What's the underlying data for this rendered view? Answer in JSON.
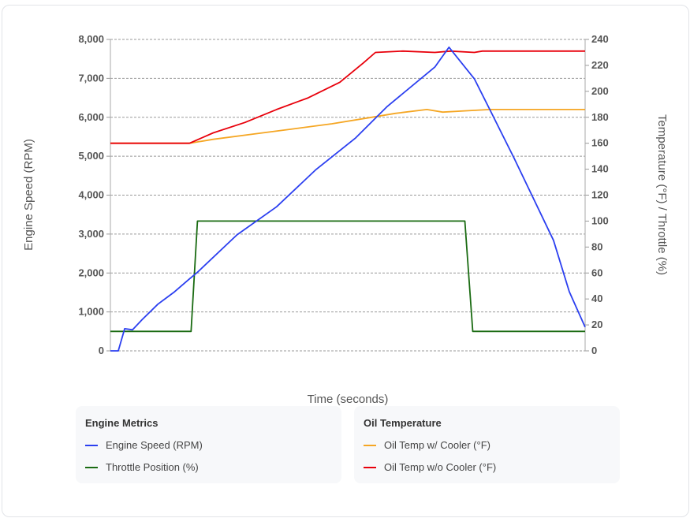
{
  "chart_data": {
    "type": "line",
    "xlabel": "Time (seconds)",
    "ylabel_left": "Engine Speed (RPM)",
    "ylabel_right": "Temperature (°F) / Throttle (%)",
    "ylim_left": [
      0,
      8000
    ],
    "ylim_right": [
      0,
      240
    ],
    "xlim": [
      0,
      60
    ],
    "yticks_left": [
      "0",
      "1,000",
      "2,000",
      "3,000",
      "4,000",
      "5,000",
      "6,000",
      "7,000",
      "8,000"
    ],
    "yticks_right": [
      "0",
      "20",
      "40",
      "60",
      "80",
      "100",
      "120",
      "140",
      "160",
      "180",
      "200",
      "220",
      "240"
    ],
    "grid": true,
    "series": [
      {
        "name": "Engine Speed (RPM)",
        "axis": "left",
        "color": "#2b3ff0",
        "x": [
          0,
          1,
          1.8,
          2.8,
          4,
          6,
          8,
          10,
          11,
          16,
          21,
          26,
          31,
          35,
          41,
          42.8,
          46,
          48,
          51,
          56,
          58,
          60
        ],
        "y": [
          0,
          0,
          570,
          540,
          800,
          1200,
          1500,
          1850,
          2020,
          2980,
          3700,
          4660,
          5470,
          6280,
          7290,
          7800,
          6990,
          6180,
          4960,
          2840,
          1520,
          610
        ]
      },
      {
        "name": "Throttle Position (%)",
        "axis": "right",
        "color": "#1a6b12",
        "x": [
          0,
          10.2,
          11,
          44.8,
          45.8,
          60
        ],
        "y": [
          15,
          15,
          100,
          100,
          15,
          15
        ]
      },
      {
        "name": "Oil Temp w/ Cooler (°F)",
        "axis": "right",
        "color": "#f5a623",
        "x": [
          0,
          10,
          13,
          18,
          23,
          28,
          33,
          36,
          40,
          42,
          45,
          48,
          60
        ],
        "y": [
          160,
          160,
          163,
          167,
          171,
          175,
          180,
          183,
          186,
          184,
          185,
          186,
          186
        ]
      },
      {
        "name": "Oil Temp w/o Cooler (°F)",
        "axis": "right",
        "color": "#e8000b",
        "x": [
          0,
          10,
          13,
          17,
          21,
          25,
          29,
          32,
          33.5,
          37,
          41,
          43,
          46,
          47,
          60
        ],
        "y": [
          160,
          160,
          168,
          176,
          186,
          195,
          207,
          222,
          230,
          231,
          230,
          231,
          230,
          231,
          231
        ]
      }
    ]
  },
  "legend": {
    "groups": [
      {
        "title": "Engine Metrics",
        "items": [
          {
            "label": "Engine Speed (RPM)",
            "color": "#2b3ff0"
          },
          {
            "label": "Throttle Position (%)",
            "color": "#1a6b12"
          }
        ]
      },
      {
        "title": "Oil Temperature",
        "items": [
          {
            "label": "Oil Temp w/ Cooler (°F)",
            "color": "#f5a623"
          },
          {
            "label": "Oil Temp w/o Cooler (°F)",
            "color": "#e8000b"
          }
        ]
      }
    ]
  }
}
